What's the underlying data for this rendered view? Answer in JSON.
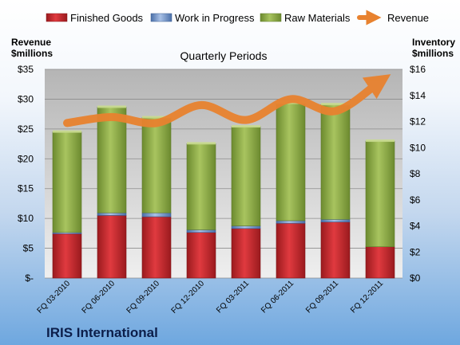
{
  "chart_data": {
    "type": "bar",
    "title": "Quarterly Periods",
    "subtitle": "IRIS International",
    "left_axis_label": [
      "Revenue",
      "$millions"
    ],
    "right_axis_label": [
      "Inventory",
      "$millions"
    ],
    "categories": [
      "FQ 03-2010",
      "FQ 06-2010",
      "FQ 09-2010",
      "FQ 12-2010",
      "FQ 03-2011",
      "FQ 06-2011",
      "FQ 09-2011",
      "FQ 12-2011"
    ],
    "stacked": true,
    "series": [
      {
        "name": "Finished Goods",
        "axis": "right",
        "color": "#c0262b",
        "values": [
          3.4,
          4.8,
          4.7,
          3.5,
          3.8,
          4.2,
          4.3,
          2.4
        ]
      },
      {
        "name": "Work in Progress",
        "axis": "right",
        "color": "#6f94cc",
        "values": [
          0.1,
          0.2,
          0.3,
          0.2,
          0.2,
          0.2,
          0.2,
          0.0
        ]
      },
      {
        "name": "Raw Materials",
        "axis": "right",
        "color": "#92b04d",
        "values": [
          7.7,
          8.1,
          7.3,
          6.6,
          7.6,
          9.0,
          8.8,
          8.1
        ]
      },
      {
        "name": "Revenue",
        "axis": "left",
        "type": "line",
        "color": "#e8822f",
        "values": [
          26.0,
          27.0,
          26.0,
          29.0,
          26.5,
          30.0,
          28.0,
          33.0
        ]
      }
    ],
    "left_axis": {
      "min": 0,
      "max": 35,
      "ticks": [
        "$-",
        "$5",
        "$10",
        "$15",
        "$20",
        "$25",
        "$30",
        "$35"
      ]
    },
    "right_axis": {
      "min": 0,
      "max": 16,
      "ticks": [
        "$0",
        "$2",
        "$4",
        "$6",
        "$8",
        "$10",
        "$12",
        "$14",
        "$16"
      ]
    },
    "grid": true,
    "legend": "top"
  },
  "colors": {
    "plot_bg_top": "#b5b5b5",
    "plot_bg_bottom": "#efefef",
    "grid": "#8c8c8c",
    "revenue_line": "#e8822f"
  }
}
